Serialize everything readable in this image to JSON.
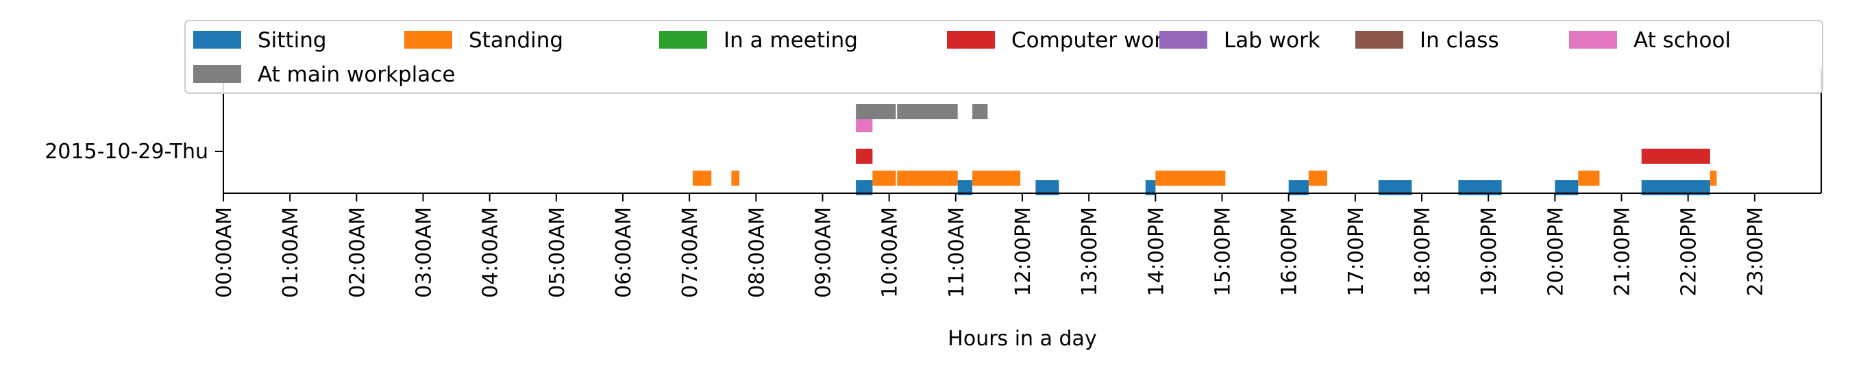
{
  "chart_data": {
    "type": "timeline",
    "xlabel": "Hours in a day",
    "xlim": [
      0,
      24
    ],
    "x_ticks": [
      "00:00AM",
      "01:00AM",
      "02:00AM",
      "03:00AM",
      "04:00AM",
      "05:00AM",
      "06:00AM",
      "07:00AM",
      "08:00AM",
      "09:00AM",
      "10:00AM",
      "11:00AM",
      "12:00PM",
      "13:00PM",
      "14:00PM",
      "15:00PM",
      "16:00PM",
      "17:00PM",
      "18:00PM",
      "19:00PM",
      "20:00PM",
      "21:00PM",
      "22:00PM",
      "23:00PM"
    ],
    "day_label": "2015-10-29-Thu",
    "legend_position": "top",
    "series": [
      {
        "name": "Sitting",
        "color": "#1f77b4",
        "intervals": [
          [
            9.5,
            9.75
          ],
          [
            11.03,
            11.25
          ],
          [
            12.2,
            12.55
          ],
          [
            13.85,
            14.0
          ],
          [
            16.0,
            16.3
          ],
          [
            17.35,
            17.85
          ],
          [
            18.55,
            19.2
          ],
          [
            20.0,
            20.35
          ],
          [
            21.3,
            22.33
          ]
        ]
      },
      {
        "name": "Standing",
        "color": "#ff7f0e",
        "intervals": [
          [
            7.05,
            7.33
          ],
          [
            7.63,
            7.75
          ],
          [
            9.75,
            10.1
          ],
          [
            10.12,
            11.03
          ],
          [
            11.25,
            11.97
          ],
          [
            14.0,
            15.05
          ],
          [
            16.3,
            16.58
          ],
          [
            20.35,
            20.67
          ],
          [
            22.33,
            22.43
          ]
        ]
      },
      {
        "name": "In a meeting",
        "color": "#2ca02c",
        "intervals": []
      },
      {
        "name": "Computer work",
        "color": "#d62728",
        "intervals": [
          [
            9.5,
            9.75
          ],
          [
            21.3,
            22.33
          ]
        ]
      },
      {
        "name": "Lab work",
        "color": "#9467bd",
        "intervals": []
      },
      {
        "name": "In class",
        "color": "#8c564b",
        "intervals": []
      },
      {
        "name": "At school",
        "color": "#e377c2",
        "intervals": [
          [
            9.5,
            9.75
          ]
        ]
      },
      {
        "name": "At main workplace",
        "color": "#7f7f7f",
        "intervals": [
          [
            9.5,
            10.1
          ],
          [
            10.12,
            11.03
          ],
          [
            11.25,
            11.48
          ]
        ]
      }
    ]
  }
}
